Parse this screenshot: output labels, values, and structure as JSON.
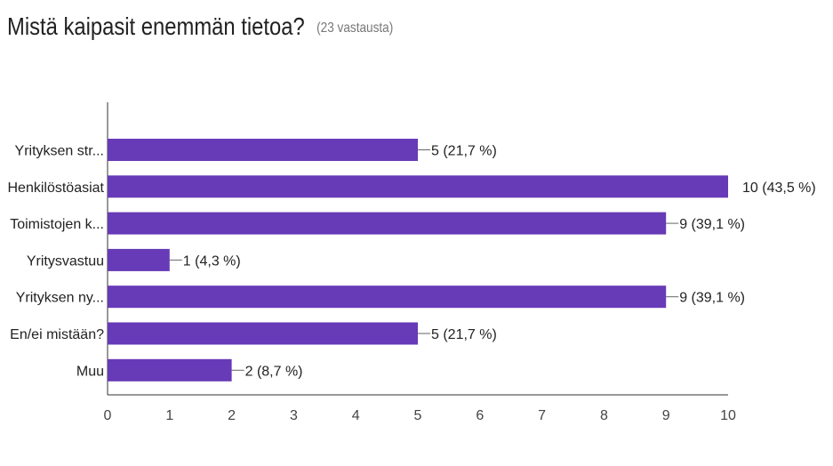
{
  "header": {
    "question": "Mistä kaipasit enemmän tietoa?",
    "response_count": "(23 vastausta)"
  },
  "chart_data": {
    "type": "bar",
    "orientation": "horizontal",
    "categories": [
      "Yrityksen str...",
      "Henkilöstöasiat",
      "Toimistojen k...",
      "Yritysvastuu",
      "Yrityksen ny...",
      "En/ei mistään?",
      "Muu"
    ],
    "values": [
      5,
      10,
      9,
      1,
      9,
      5,
      2
    ],
    "data_labels": [
      "5 (21,7 %)",
      "10 (43,5 %)",
      "9 (39,1 %)",
      "1 (4,3 %)",
      "9 (39,1 %)",
      "5 (21,7 %)",
      "2 (8,7 %)"
    ],
    "xlim": [
      0,
      10
    ],
    "x_ticks": [
      "0",
      "1",
      "2",
      "3",
      "4",
      "5",
      "6",
      "7",
      "8",
      "9",
      "10"
    ],
    "bar_color": "#673AB7",
    "grid": false
  }
}
